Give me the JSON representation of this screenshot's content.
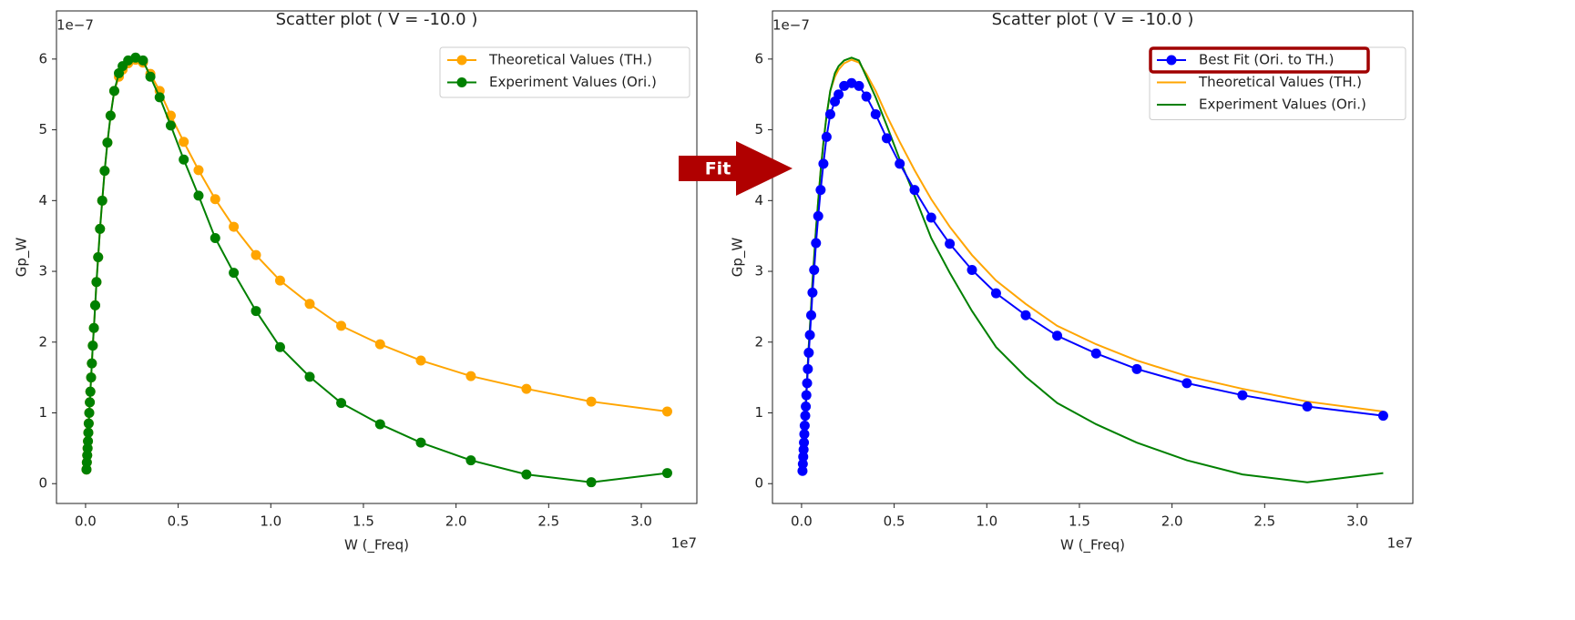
{
  "chart_data": [
    {
      "type": "scatter",
      "title": "Scatter plot ( V = -10.0 )",
      "x_label": "W (_Freq)",
      "y_label": "Gp_W",
      "x_offset_label": "1e7",
      "y_offset_label": "1e−7",
      "x": [
        0.005,
        0.007,
        0.009,
        0.011,
        0.013,
        0.015,
        0.017,
        0.02,
        0.023,
        0.026,
        0.03,
        0.034,
        0.039,
        0.045,
        0.052,
        0.059,
        0.068,
        0.078,
        0.09,
        0.103,
        0.118,
        0.135,
        0.155,
        0.18,
        0.2,
        0.23,
        0.27,
        0.31,
        0.35,
        0.4,
        0.46,
        0.53,
        0.61,
        0.7,
        0.8,
        0.92,
        1.05,
        1.21,
        1.38,
        1.59,
        1.81,
        2.08,
        2.38,
        2.73,
        3.14
      ],
      "series": [
        {
          "name": "Theoretical Values (TH.)",
          "color": "orange",
          "marker": true,
          "values": [
            0.2,
            0.3,
            0.4,
            0.5,
            0.6,
            0.72,
            0.85,
            1.0,
            1.15,
            1.3,
            1.5,
            1.7,
            1.95,
            2.2,
            2.52,
            2.85,
            3.2,
            3.6,
            4.0,
            4.42,
            4.82,
            5.2,
            5.55,
            5.75,
            5.85,
            5.94,
            5.99,
            5.95,
            5.79,
            5.55,
            5.2,
            4.83,
            4.43,
            4.02,
            3.63,
            3.23,
            2.87,
            2.54,
            2.23,
            1.97,
            1.74,
            1.52,
            1.34,
            1.16,
            1.02
          ]
        },
        {
          "name": "Experiment Values (Ori.)",
          "color": "green",
          "marker": true,
          "values": [
            0.2,
            0.3,
            0.4,
            0.5,
            0.6,
            0.72,
            0.85,
            1.0,
            1.15,
            1.3,
            1.5,
            1.7,
            1.95,
            2.2,
            2.52,
            2.85,
            3.2,
            3.6,
            4.0,
            4.42,
            4.82,
            5.2,
            5.55,
            5.8,
            5.9,
            5.98,
            6.02,
            5.98,
            5.75,
            5.46,
            5.06,
            4.58,
            4.07,
            3.47,
            2.98,
            2.44,
            1.93,
            1.51,
            1.14,
            0.84,
            0.58,
            0.33,
            0.13,
            0.02,
            0.15
          ]
        }
      ],
      "xlim": [
        -0.157,
        3.3
      ],
      "ylim": [
        -0.28,
        6.68
      ],
      "xticks": [
        {
          "value": 0,
          "label": "0.0"
        },
        {
          "value": 0.5,
          "label": "0.5"
        },
        {
          "value": 1,
          "label": "1.0"
        },
        {
          "value": 1.5,
          "label": "1.5"
        },
        {
          "value": 2,
          "label": "2.0"
        },
        {
          "value": 2.5,
          "label": "2.5"
        },
        {
          "value": 3,
          "label": "3.0"
        }
      ],
      "yticks": [
        0,
        1,
        2,
        3,
        4,
        5,
        6
      ],
      "legend": "upper right"
    },
    {
      "type": "scatter",
      "title": "Scatter plot ( V = -10.0 )",
      "x_label": "W (_Freq)",
      "y_label": "Gp_W",
      "x_offset_label": "1e7",
      "y_offset_label": "1e−7",
      "x": [
        0.005,
        0.007,
        0.009,
        0.011,
        0.013,
        0.015,
        0.017,
        0.02,
        0.023,
        0.026,
        0.03,
        0.034,
        0.039,
        0.045,
        0.052,
        0.059,
        0.068,
        0.078,
        0.09,
        0.103,
        0.118,
        0.135,
        0.155,
        0.18,
        0.2,
        0.23,
        0.27,
        0.31,
        0.35,
        0.4,
        0.46,
        0.53,
        0.61,
        0.7,
        0.8,
        0.92,
        1.05,
        1.21,
        1.38,
        1.59,
        1.81,
        2.08,
        2.38,
        2.73,
        3.14
      ],
      "series": [
        {
          "name": "Best Fit (Ori. to TH.)",
          "color": "blue",
          "marker": true,
          "values": [
            0.18,
            0.28,
            0.38,
            0.48,
            0.58,
            0.7,
            0.82,
            0.96,
            1.09,
            1.25,
            1.42,
            1.62,
            1.85,
            2.1,
            2.38,
            2.7,
            3.02,
            3.4,
            3.78,
            4.15,
            4.52,
            4.9,
            5.22,
            5.4,
            5.5,
            5.62,
            5.66,
            5.62,
            5.47,
            5.22,
            4.88,
            4.52,
            4.15,
            3.76,
            3.39,
            3.02,
            2.69,
            2.38,
            2.09,
            1.84,
            1.62,
            1.42,
            1.25,
            1.09,
            0.96
          ]
        },
        {
          "name": "Theoretical Values (TH.)",
          "color": "orange",
          "marker": false,
          "values": [
            0.2,
            0.3,
            0.4,
            0.5,
            0.6,
            0.72,
            0.85,
            1.0,
            1.15,
            1.3,
            1.5,
            1.7,
            1.95,
            2.2,
            2.52,
            2.85,
            3.2,
            3.6,
            4.0,
            4.42,
            4.82,
            5.2,
            5.55,
            5.75,
            5.85,
            5.94,
            5.99,
            5.95,
            5.79,
            5.55,
            5.2,
            4.83,
            4.43,
            4.02,
            3.63,
            3.23,
            2.87,
            2.54,
            2.23,
            1.97,
            1.74,
            1.52,
            1.34,
            1.16,
            1.02
          ]
        },
        {
          "name": "Experiment Values (Ori.)",
          "color": "green",
          "marker": false,
          "values": [
            0.2,
            0.3,
            0.4,
            0.5,
            0.6,
            0.72,
            0.85,
            1.0,
            1.15,
            1.3,
            1.5,
            1.7,
            1.95,
            2.2,
            2.52,
            2.85,
            3.2,
            3.6,
            4.0,
            4.42,
            4.82,
            5.2,
            5.55,
            5.8,
            5.9,
            5.98,
            6.02,
            5.98,
            5.75,
            5.46,
            5.06,
            4.58,
            4.07,
            3.47,
            2.98,
            2.44,
            1.93,
            1.51,
            1.14,
            0.84,
            0.58,
            0.33,
            0.13,
            0.02,
            0.15
          ]
        }
      ],
      "xlim": [
        -0.157,
        3.3
      ],
      "ylim": [
        -0.28,
        6.68
      ],
      "xticks": [
        {
          "value": 0,
          "label": "0.0"
        },
        {
          "value": 0.5,
          "label": "0.5"
        },
        {
          "value": 1,
          "label": "1.0"
        },
        {
          "value": 1.5,
          "label": "1.5"
        },
        {
          "value": 2,
          "label": "2.0"
        },
        {
          "value": 2.5,
          "label": "2.5"
        },
        {
          "value": 3,
          "label": "3.0"
        }
      ],
      "yticks": [
        0,
        1,
        2,
        3,
        4,
        5,
        6
      ],
      "legend": "upper right"
    }
  ],
  "arrow_label": "Fit"
}
